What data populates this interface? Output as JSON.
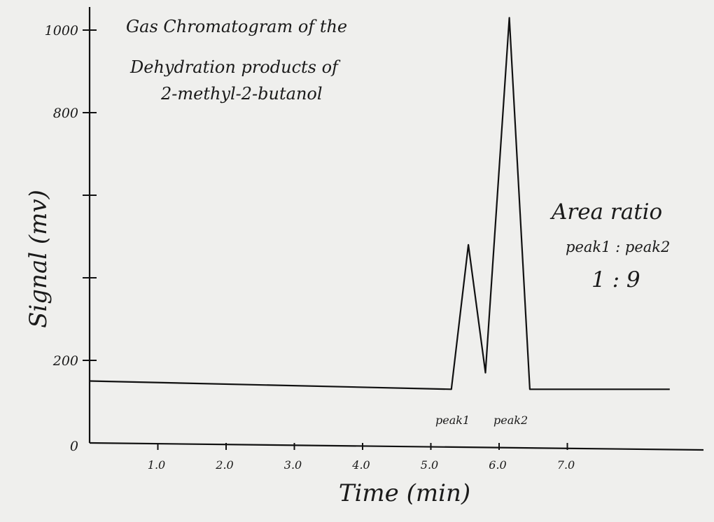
{
  "chart_data": {
    "type": "line",
    "title": [
      "Gas Chromatogram of the",
      "Dehydration products of",
      "2-methyl-2-butanol"
    ],
    "xlabel": "Time (min)",
    "ylabel": "Signal (mv)",
    "xlim": [
      0,
      8.6
    ],
    "ylim": [
      0,
      1000
    ],
    "x_ticks": [
      1.0,
      2.0,
      3.0,
      4.0,
      5.0,
      6.0,
      7.0
    ],
    "x_tick_labels": [
      "1.0",
      "2.0",
      "3.0",
      "4.0",
      "5.0",
      "6.0",
      "7.0"
    ],
    "y_ticks": [
      0,
      200,
      400,
      600,
      800,
      1000
    ],
    "y_tick_labels": [
      "0",
      "200",
      "",
      "",
      "800",
      "1000"
    ],
    "series": [
      {
        "x": [
          0,
          5.3,
          5.55,
          5.8,
          6.15,
          6.45,
          8.5
        ],
        "y": [
          150,
          130,
          480,
          170,
          1030,
          130,
          130
        ]
      }
    ],
    "annotations": {
      "peak_labels": [
        "peak1",
        "peak2"
      ],
      "area_ratio_title": "Area ratio",
      "area_ratio_header": "peak1 : peak2",
      "area_ratio_values": "1 : 9"
    },
    "grid": false,
    "legend": "none"
  }
}
